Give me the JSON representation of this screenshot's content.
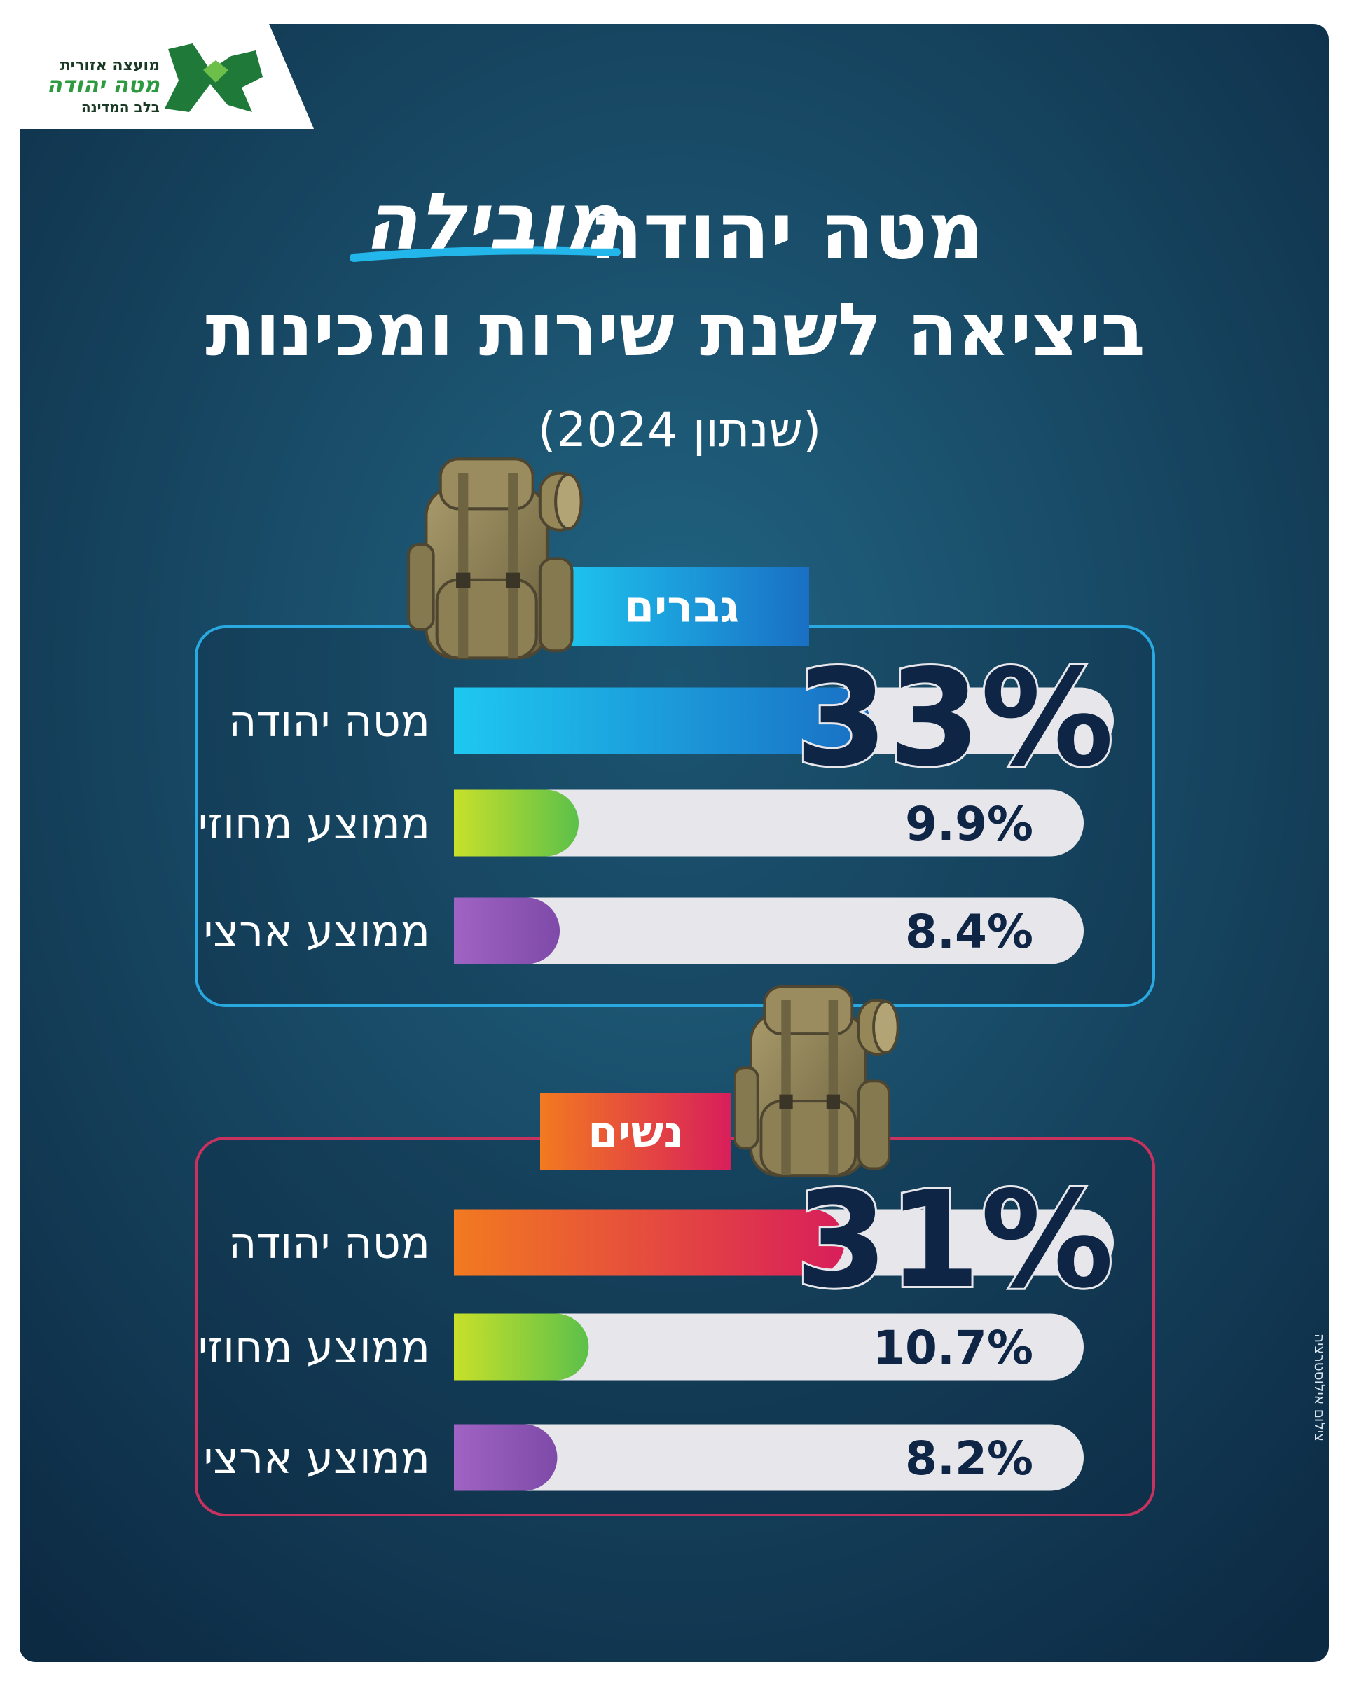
{
  "header": {
    "logo": {
      "line1": "מועצה אזורית",
      "line2": "מטה יהודה",
      "line3": "בלב המדינה"
    },
    "title": "מטה יהודה",
    "highlight": "מובילה",
    "title_line2": "ביציאה לשנת שירות ומכינות",
    "subtitle": "(שנתון 2024)",
    "credit": "צילום אילוסטרציה"
  },
  "chart_data": [
    {
      "type": "bar",
      "title": "גברים",
      "categories": [
        "מטה יהודה",
        "ממוצע מחוזי",
        "ממוצע ארצי"
      ],
      "values": [
        33,
        9.9,
        8.4
      ],
      "value_labels": [
        "33%",
        "9.9%",
        "8.4%"
      ],
      "colors": [
        [
          "#1ec8f0",
          "#1a6fc4"
        ],
        [
          "#c8e02a",
          "#5cc04a"
        ],
        [
          "#a063c4",
          "#7e4aa8"
        ]
      ],
      "frame_color": "#2aa8e0",
      "tag_colors": [
        "#1ec8f0",
        "#1a6fc4"
      ]
    },
    {
      "type": "bar",
      "title": "נשים",
      "categories": [
        "מטה יהודה",
        "ממוצע מחוזי",
        "ממוצע ארצי"
      ],
      "values": [
        31,
        10.7,
        8.2
      ],
      "value_labels": [
        "31%",
        "10.7%",
        "8.2%"
      ],
      "colors": [
        [
          "#f27a20",
          "#d81e5b"
        ],
        [
          "#c8e02a",
          "#5cc04a"
        ],
        [
          "#a063c4",
          "#7e4aa8"
        ]
      ],
      "frame_color": "#c8325e",
      "tag_colors": [
        "#f27a20",
        "#d81e5b"
      ]
    }
  ]
}
